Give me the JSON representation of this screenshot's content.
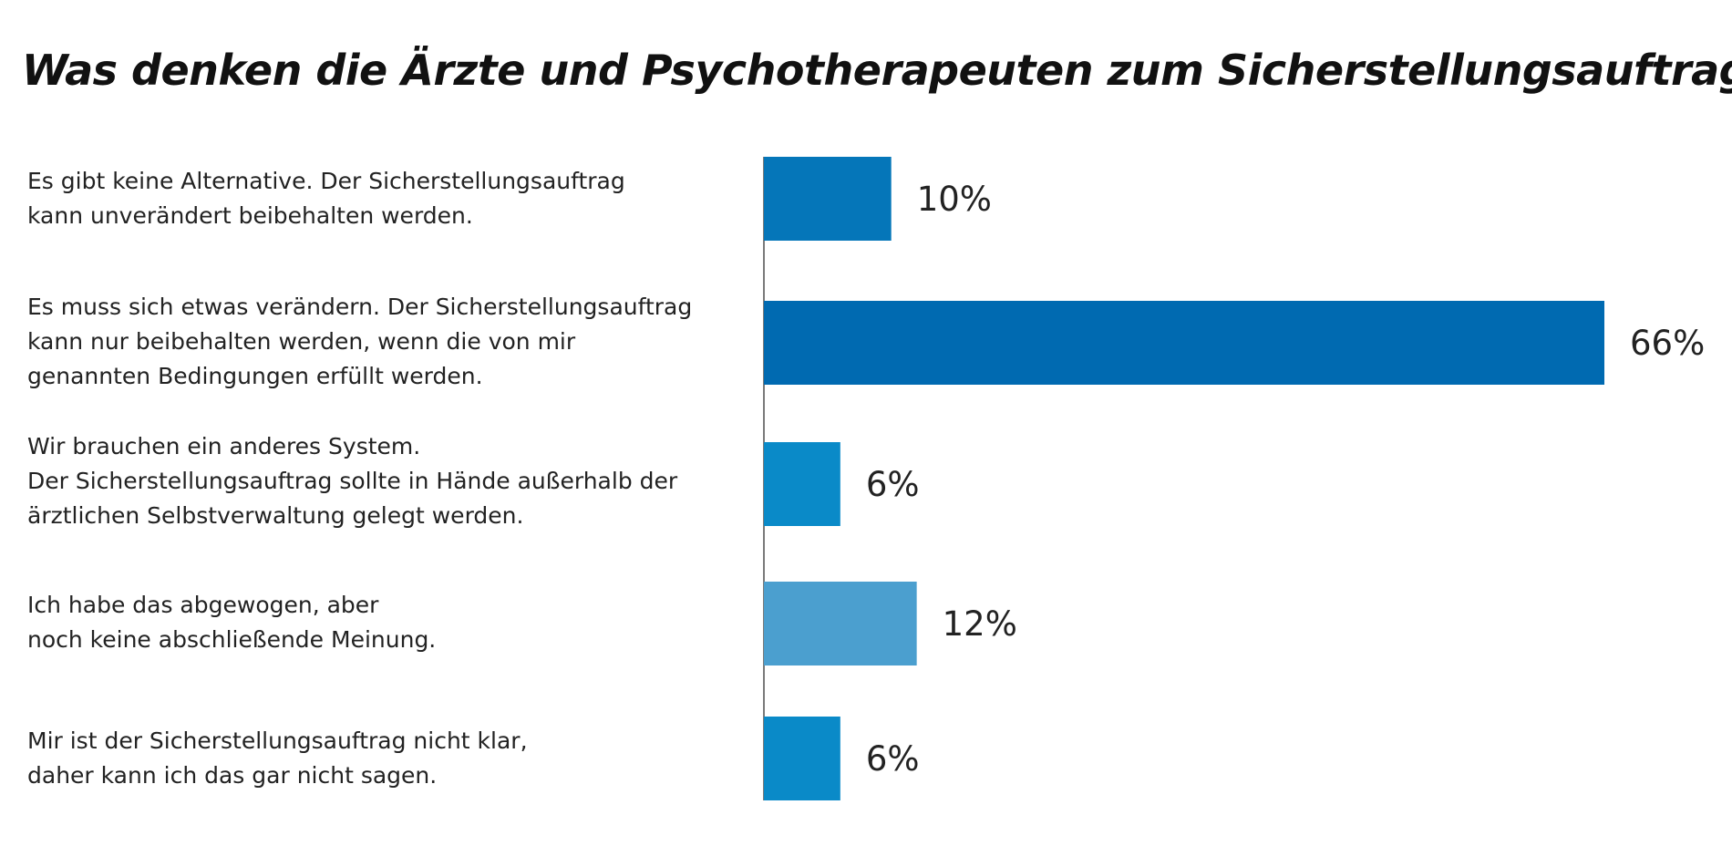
{
  "chart_data": {
    "type": "bar",
    "orientation": "horizontal",
    "title": "Was denken die Ärzte und Psychotherapeuten zum Sicherstellungsauftrag?",
    "xlabel": "",
    "ylabel": "",
    "xlim": [
      0,
      66
    ],
    "grid": false,
    "categories": [
      [
        "Es gibt keine Alternative. Der Sicherstellungsauftrag",
        "kann unverändert beibehalten werden."
      ],
      [
        "Es muss sich etwas verändern. Der Sicherstellungsauftrag",
        "kann nur beibehalten werden, wenn die von mir",
        "genannten Bedingungen erfüllt werden."
      ],
      [
        "Wir brauchen ein anderes System.",
        "Der Sicherstellungsauftrag sollte in Hände außerhalb der",
        "ärztlichen Selbstverwaltung gelegt werden."
      ],
      [
        "Ich habe das abgewogen, aber",
        "noch keine abschließende Meinung."
      ],
      [
        "Mir ist der Sicherstellungsauftrag nicht klar,",
        "daher kann ich das gar nicht sagen."
      ]
    ],
    "values": [
      10,
      66,
      6,
      12,
      6
    ],
    "value_labels": [
      "10%",
      "66%",
      "6%",
      "12%",
      "6%"
    ],
    "bar_colors": [
      "#0576b9",
      "#006ab1",
      "#0a8ac8",
      "#4b9fcf",
      "#0a8ac8"
    ],
    "axis_color": "#7a7a7a"
  }
}
